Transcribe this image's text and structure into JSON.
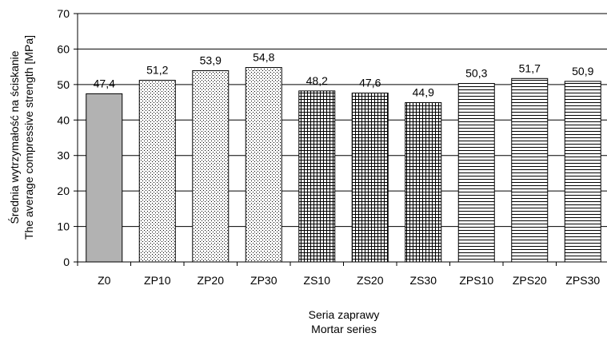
{
  "chart_data": {
    "type": "bar",
    "categories": [
      "Z0",
      "ZP10",
      "ZP20",
      "ZP30",
      "ZS10",
      "ZS20",
      "ZS30",
      "ZPS10",
      "ZPS20",
      "ZPS30"
    ],
    "values": [
      47.4,
      51.2,
      53.9,
      54.8,
      48.2,
      47.6,
      44.9,
      50.3,
      51.7,
      50.9
    ],
    "data_labels": [
      "47,4",
      "51,2",
      "53,9",
      "54,8",
      "48,2",
      "47,6",
      "44,9",
      "50,3",
      "51,7",
      "50,9"
    ],
    "patterns": [
      "solid-gray",
      "dots",
      "dots",
      "dots",
      "grid",
      "grid",
      "grid",
      "horizontal-lines",
      "horizontal-lines",
      "horizontal-lines"
    ],
    "colors": {
      "solid": "#b2b2b2",
      "stroke": "#000000",
      "gridline": "#000000"
    },
    "ylim": [
      0,
      70
    ],
    "yticks": [
      0,
      10,
      20,
      30,
      40,
      50,
      60,
      70
    ],
    "ylabel_lines": [
      "Średnia wytrzymałość na ściskanie",
      "The average compressive strength [MPa]"
    ],
    "xlabel_lines": [
      "Seria zaprawy",
      "Mortar series"
    ],
    "grid": true,
    "legend": "none"
  }
}
